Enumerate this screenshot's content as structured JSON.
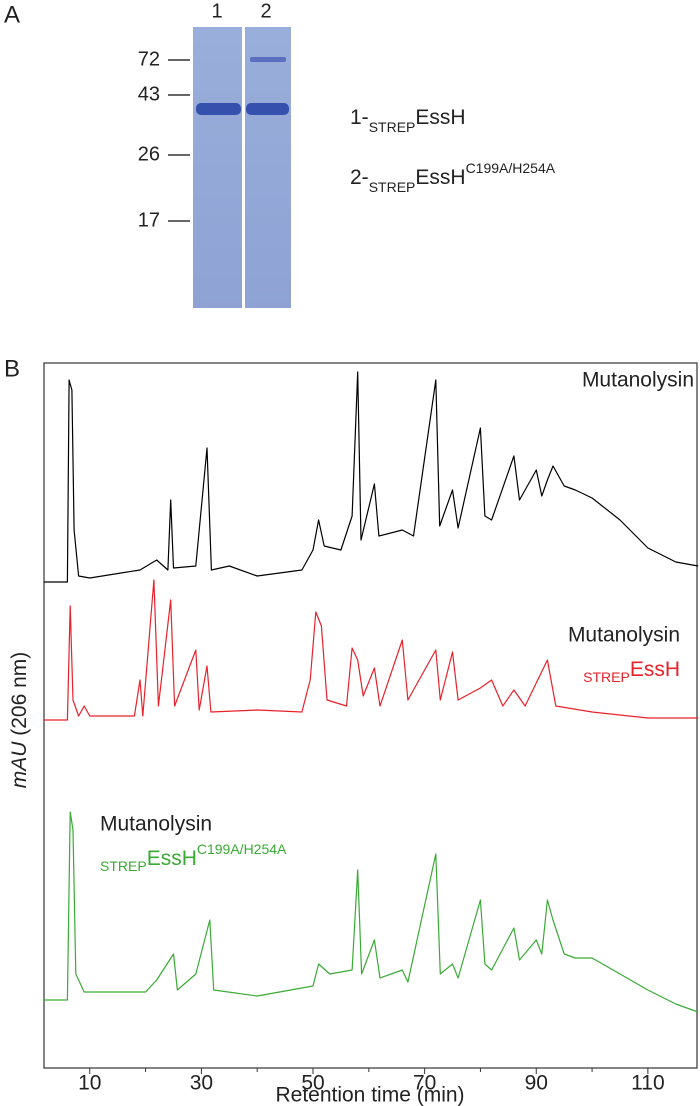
{
  "panel_a": {
    "label": "A",
    "lanes": [
      "1",
      "2"
    ],
    "markers": [
      72,
      43,
      26,
      17
    ],
    "legend": [
      {
        "number": "1-",
        "subscript": "STREP",
        "main": "EssH"
      },
      {
        "number": "2-",
        "subscript": "STREP",
        "main": "EssH",
        "superscript": "C199A/H254A"
      }
    ]
  },
  "chart_data": {
    "type": "line",
    "label": "B",
    "y_label": "mAU",
    "y_label_unit": "(206 nm)",
    "x_label": "Retention time (min)",
    "xlim": [
      1.8,
      118.8
    ],
    "xticks": [
      10,
      30,
      50,
      70,
      90,
      110
    ],
    "xminorticks": [
      20,
      40,
      60,
      80,
      100
    ],
    "ylim": [
      0,
      110
    ],
    "series": [
      {
        "name": "Mutanolysin",
        "color": "#000000",
        "x": [
          1.8,
          6,
          6.3,
          6.8,
          7.2,
          8,
          10,
          19,
          22,
          24,
          24.5,
          25,
          29,
          31,
          31.8,
          35,
          40,
          48,
          50,
          51,
          52,
          55,
          57,
          58,
          58.6,
          61,
          61.8,
          66,
          68,
          72,
          72.7,
          75,
          76,
          80,
          80.8,
          82,
          86,
          87,
          90,
          91,
          92,
          93,
          95,
          97,
          100,
          105,
          110,
          115,
          119
        ],
        "values": [
          0,
          0,
          101,
          96,
          26,
          3,
          2,
          6,
          11,
          6,
          41,
          7,
          8,
          67,
          6,
          8,
          3,
          6,
          16,
          31,
          18,
          16,
          33,
          105,
          21,
          49,
          23,
          26,
          23,
          101,
          28,
          46,
          27,
          77,
          33,
          31,
          63,
          41,
          56,
          43,
          51,
          58,
          48,
          46,
          42,
          31,
          17,
          10,
          8
        ]
      },
      {
        "name": "Mutanolysin",
        "subscript": "STREP",
        "main": "EssH",
        "color": "#e8212a",
        "x": [
          1.8,
          6,
          6.5,
          7,
          8,
          9,
          10,
          18,
          19,
          19.5,
          21.5,
          22.3,
          24.5,
          25.2,
          29,
          29.6,
          31,
          31.7,
          40,
          48,
          49.5,
          50.5,
          51.5,
          52.5,
          56,
          57,
          58,
          59,
          61,
          62,
          66,
          67,
          72,
          72.8,
          75,
          76,
          80,
          82,
          84,
          86,
          88,
          92,
          93.5,
          100,
          110,
          119
        ],
        "values": [
          1,
          1,
          58,
          11,
          3,
          8,
          3,
          3,
          21,
          3,
          71,
          8,
          61,
          8,
          36,
          6,
          28,
          5,
          6,
          5,
          21,
          55,
          48,
          11,
          8,
          37,
          31,
          13,
          27,
          8,
          41,
          11,
          36,
          11,
          35,
          11,
          17,
          21,
          8,
          16,
          8,
          31,
          8,
          5,
          2,
          2
        ]
      },
      {
        "name": "Mutanolysin",
        "subscript": "STREP",
        "main": "EssH",
        "superscript": "C199A/H254A",
        "color": "#3aaa35",
        "x": [
          1.8,
          6,
          6.5,
          7,
          7.5,
          9,
          20,
          22,
          25,
          25.7,
          29,
          31.5,
          32.2,
          40,
          50,
          51,
          53,
          57,
          58,
          58.7,
          61,
          62,
          66,
          67,
          72,
          72.8,
          75,
          76,
          80,
          80.8,
          82,
          86,
          87,
          90,
          91,
          92,
          93,
          95,
          97,
          100,
          105,
          110,
          115,
          119
        ],
        "values": [
          1,
          1,
          95,
          86,
          14,
          5,
          5,
          11,
          24,
          6,
          14,
          41,
          6,
          3,
          8,
          19,
          14,
          16,
          66,
          14,
          31,
          12,
          16,
          10,
          74,
          14,
          19,
          12,
          51,
          19,
          16,
          37,
          21,
          31,
          24,
          51,
          41,
          24,
          22,
          22,
          14,
          6,
          -1,
          -5
        ]
      }
    ]
  }
}
